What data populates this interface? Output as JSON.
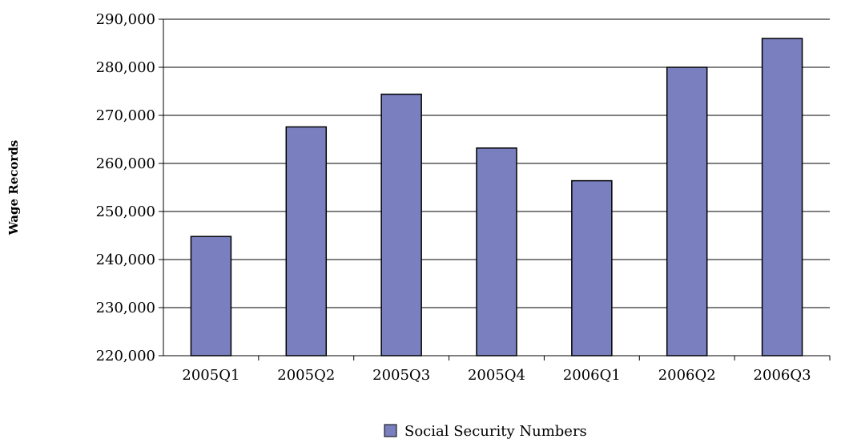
{
  "chart_data": {
    "type": "bar",
    "title": "",
    "xlabel": "",
    "ylabel": "Wage Records",
    "categories": [
      "2005Q1",
      "2005Q2",
      "2005Q3",
      "2005Q4",
      "2006Q1",
      "2006Q2",
      "2006Q3"
    ],
    "series": [
      {
        "name": "Social Security Numbers",
        "values": [
          244800,
          267600,
          274400,
          263200,
          256400,
          280000,
          286000
        ],
        "color": "#7a7fbf"
      }
    ],
    "ylim": [
      220000,
      290000
    ],
    "yticks": [
      220000,
      230000,
      240000,
      250000,
      260000,
      270000,
      280000,
      290000
    ],
    "ytick_labels": [
      "220,000",
      "230,000",
      "240,000",
      "250,000",
      "260,000",
      "270,000",
      "280,000",
      "290,000"
    ],
    "grid": true,
    "legend_position": "bottom-center"
  }
}
